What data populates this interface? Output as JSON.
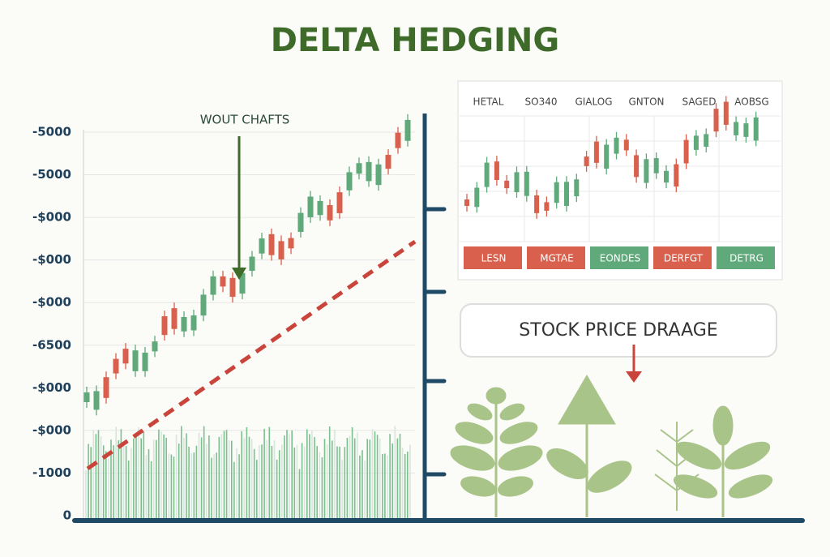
{
  "header": {
    "title": "DELTA HEDGING"
  },
  "main_chart": {
    "annotation": "WOUT CHAFTS",
    "y_axis_labels": [
      "-5000",
      "-5000",
      "-$000",
      "-$000",
      "-$000",
      "-6500",
      "-$000",
      "-$000",
      "-1000",
      "0"
    ]
  },
  "panel": {
    "columns": [
      "HETAL",
      "SO340",
      "GIALOG",
      "GNTON",
      "SAGED",
      "AOBSG"
    ],
    "buttons": [
      {
        "label": "LESN",
        "color": "#d9604c"
      },
      {
        "label": "MGTAE",
        "color": "#d9604c"
      },
      {
        "label": "EONDES",
        "color": "#5fa97a"
      },
      {
        "label": "DERFGT",
        "color": "#d9604c"
      },
      {
        "label": "DETRG",
        "color": "#5fa97a"
      }
    ]
  },
  "callout": {
    "text": "STOCK PRICE DRAAGE"
  }
}
